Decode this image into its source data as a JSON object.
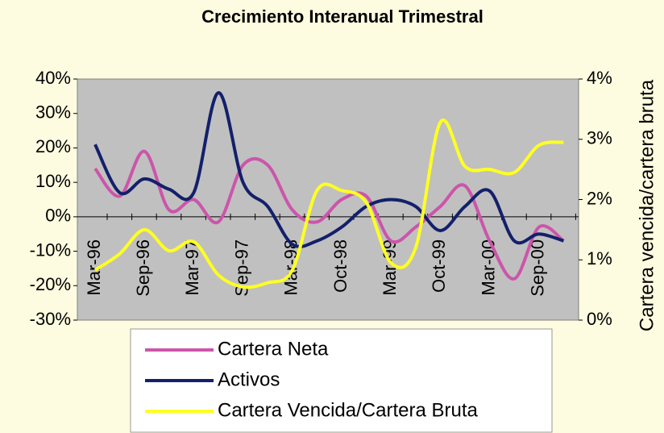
{
  "chart_data": {
    "type": "line",
    "title": "Crecimiento Interanual Trimestral",
    "y2label": "Cartera vencida/cartera bruta",
    "categories": [
      "Mar-96",
      null,
      "Sep-96",
      null,
      "Mar-97",
      null,
      "Sep-97",
      null,
      "Mar-98",
      null,
      "Oct-98",
      null,
      "Mar-99",
      null,
      "Oct-99",
      null,
      "Mar-00",
      null,
      "Sep-00",
      null
    ],
    "series": [
      {
        "name": "Cartera Neta",
        "color": "#cc55aa",
        "values": [
          14,
          6,
          19,
          2,
          5,
          -1.5,
          15,
          15,
          2,
          -1.5,
          5,
          6,
          -7,
          -3,
          3,
          9,
          -7,
          -18,
          -3,
          -7
        ]
      },
      {
        "name": "Activos",
        "color": "#13206b",
        "values": [
          21,
          7,
          11,
          8,
          7,
          36,
          10,
          3,
          -8,
          -7,
          -3,
          3,
          5,
          3,
          -4,
          3,
          7.5,
          -7,
          -5,
          -7
        ]
      },
      {
        "name": "Cartera Vencida/Cartera Bruta",
        "color": "#ffff22",
        "axis": "y2",
        "values": [
          0.83,
          1.1,
          1.5,
          1.15,
          1.3,
          0.75,
          0.55,
          0.62,
          0.83,
          2.15,
          2.15,
          1.95,
          0.95,
          1.2,
          3.28,
          2.55,
          2.5,
          2.45,
          2.9,
          2.95
        ]
      }
    ],
    "ylim": [
      -30,
      40
    ],
    "yticks": [
      {
        "value": -30,
        "label": "-30%"
      },
      {
        "value": -20,
        "label": "-20%"
      },
      {
        "value": -10,
        "label": "-10%"
      },
      {
        "value": 0,
        "label": "0%"
      },
      {
        "value": 10,
        "label": "10%"
      },
      {
        "value": 20,
        "label": "20%"
      },
      {
        "value": 30,
        "label": "30%"
      },
      {
        "value": 40,
        "label": "40%"
      }
    ],
    "y2lim": [
      0,
      4
    ],
    "y2ticks": [
      {
        "value": 0,
        "label": "0%"
      },
      {
        "value": 1,
        "label": "1%"
      },
      {
        "value": 2,
        "label": "2%"
      },
      {
        "value": 3,
        "label": "3%"
      },
      {
        "value": 4,
        "label": "4%"
      }
    ],
    "plot_background": "#c0c0c0",
    "legend": "bottom"
  }
}
